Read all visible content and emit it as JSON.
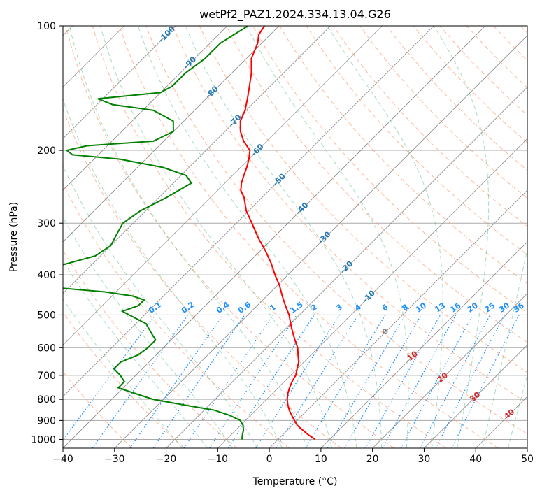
{
  "chart_data": {
    "type": "line",
    "title": "wetPf2_PAZ1.2024.334.13.04.G26",
    "xlabel": "Temperature (°C)",
    "ylabel": "Pressure (hPa)",
    "xlim": [
      -40,
      50
    ],
    "ylim": [
      1050,
      100
    ],
    "y_scale": "log",
    "skew": true,
    "x_ticks": [
      "−40",
      "−30",
      "−20",
      "−10",
      "0",
      "10",
      "20",
      "30",
      "40",
      "50"
    ],
    "x_tick_values": [
      -40,
      -30,
      -20,
      -10,
      0,
      10,
      20,
      30,
      40,
      50
    ],
    "y_ticks": [
      "100",
      "200",
      "300",
      "400",
      "500",
      "600",
      "700",
      "800",
      "900",
      "1000"
    ],
    "y_tick_values": [
      100,
      200,
      300,
      400,
      500,
      600,
      700,
      800,
      900,
      1000
    ],
    "grid": true,
    "series": [
      {
        "color": "#ff0000",
        "pressure": [
          1000,
          975,
          950,
          925,
          900,
          875,
          850,
          825,
          800,
          775,
          750,
          725,
          700,
          675,
          650,
          625,
          600,
          575,
          550,
          525,
          500,
          475,
          450,
          425,
          400,
          375,
          350,
          325,
          300,
          280,
          260,
          250,
          240,
          230,
          220,
          210,
          200,
          190,
          180,
          170,
          160,
          150,
          140,
          130,
          120,
          110,
          105,
          100
        ],
        "temperature": [
          7.2,
          5.0,
          3.0,
          1.0,
          -0.5,
          -2.0,
          -3.5,
          -4.8,
          -6.0,
          -7.0,
          -7.8,
          -8.5,
          -9.0,
          -10.0,
          -11.0,
          -12.5,
          -14.0,
          -16.0,
          -18.0,
          -20.0,
          -22.0,
          -24.5,
          -27.0,
          -29.5,
          -32.5,
          -35.5,
          -39.0,
          -43.0,
          -47.0,
          -50.5,
          -53.5,
          -55.5,
          -56.8,
          -57.8,
          -58.8,
          -60.0,
          -61.5,
          -64.5,
          -67.0,
          -69.0,
          -70.2,
          -72.0,
          -74.0,
          -76.2,
          -79.0,
          -80.8,
          -82.2,
          -82.8
        ]
      },
      {
        "color": "#008000",
        "pressure": [
          1000,
          975,
          950,
          925,
          900,
          875,
          850,
          825,
          800,
          775,
          750,
          725,
          700,
          675,
          650,
          625,
          600,
          575,
          550,
          525,
          500,
          490,
          475,
          460,
          450,
          440,
          430,
          425,
          420,
          410,
          400,
          395,
          380,
          360,
          340,
          320,
          300,
          280,
          260,
          240,
          230,
          220,
          210,
          205,
          200,
          195,
          190,
          180,
          170,
          160,
          155,
          150,
          145,
          140,
          130,
          120,
          110,
          100
        ],
        "temperature": [
          -7.0,
          -7.8,
          -8.5,
          -9.5,
          -11.0,
          -14.0,
          -18.0,
          -25.0,
          -32.0,
          -36.5,
          -41.0,
          -41.0,
          -43.0,
          -45.5,
          -45.5,
          -43.5,
          -43.0,
          -43.0,
          -45.5,
          -48.0,
          -53.0,
          -55.0,
          -53.0,
          -53.0,
          -56.0,
          -62.0,
          -72.0,
          -85.0,
          -90.0,
          -95.0,
          -98.0,
          -95.0,
          -76.0,
          -71.0,
          -70.0,
          -71.0,
          -72.0,
          -71.0,
          -68.5,
          -66.5,
          -69.0,
          -75.0,
          -85.0,
          -95.0,
          -97.0,
          -94.0,
          -82.0,
          -80.0,
          -82.0,
          -88.0,
          -97.0,
          -101.0,
          -90.0,
          -89.0,
          -89.0,
          -88.0,
          -88.0,
          -86.0
        ]
      }
    ],
    "mixing_ratio_labels": [
      "0.1",
      "0.2",
      "0.4",
      "0.6",
      "1",
      "1.5",
      "2",
      "3",
      "4",
      "6",
      "8",
      "10",
      "13",
      "16",
      "20",
      "25",
      "30",
      "36"
    ],
    "mixing_ratio_values": [
      0.1,
      0.2,
      0.4,
      0.6,
      1,
      1.5,
      2,
      3,
      4,
      6,
      8,
      10,
      13,
      16,
      20,
      25,
      30,
      36
    ],
    "dry_adiabat_labels": [
      "-100",
      "-90",
      "-80",
      "-70",
      "-60",
      "-50",
      "-40",
      "-30",
      "-20",
      "-10"
    ],
    "dry_adiabat_label_values": [
      -100,
      -90,
      -80,
      -70,
      -60,
      -50,
      -40,
      -30,
      -20,
      -10
    ],
    "moist_adiabat_labels": [
      "0",
      "10",
      "20",
      "30",
      "40"
    ],
    "moist_adiabat_label_values": [
      0,
      10,
      20,
      30,
      40
    ],
    "colors": {
      "temperature_line": "#ff0000",
      "dewpoint_line": "#008000",
      "dry_adiabat": "#ffa07a",
      "moist_adiabat": "#3cb371",
      "mixing_ratio": "#1e90ff",
      "isotherm": "#888888",
      "isobar": "#aaaaaa",
      "dry_label": "#1f77b4",
      "mixing_label": "#1e90ff",
      "moist_label": "#d62728"
    }
  }
}
